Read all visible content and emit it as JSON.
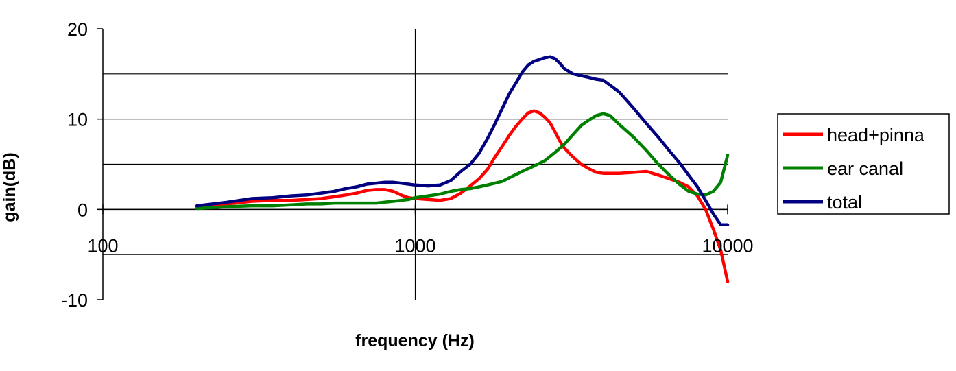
{
  "chart_data": {
    "type": "line",
    "xlabel": "frequency (Hz)",
    "ylabel": "gain(dB)",
    "x_scale": "log",
    "xlim": [
      100,
      10000
    ],
    "ylim": [
      -10,
      20
    ],
    "x_ticks": [
      {
        "value": 100,
        "label": "100"
      },
      {
        "value": 1000,
        "label": "1000"
      },
      {
        "value": 10000,
        "label": "10000"
      }
    ],
    "y_ticks": [
      {
        "value": 20,
        "label": "20"
      },
      {
        "value": 10,
        "label": "10"
      },
      {
        "value": 0,
        "label": "0"
      },
      {
        "value": -10,
        "label": "-10"
      }
    ],
    "y_gridlines": [
      15,
      10,
      5,
      0,
      -5
    ],
    "x_gridlines": [
      1000
    ],
    "legend": "right",
    "series": [
      {
        "name": "head+pinna",
        "color": "#ff0000",
        "x": [
          200,
          250,
          300,
          350,
          400,
          450,
          500,
          550,
          600,
          650,
          700,
          750,
          800,
          850,
          900,
          950,
          1000,
          1100,
          1200,
          1300,
          1400,
          1500,
          1600,
          1700,
          1800,
          1900,
          2000,
          2100,
          2200,
          2300,
          2400,
          2500,
          2600,
          2700,
          2800,
          2900,
          3000,
          3200,
          3400,
          3600,
          3800,
          4000,
          4500,
          5000,
          5500,
          6000,
          6500,
          7000,
          7500,
          8000,
          8500,
          9000,
          9500,
          10000
        ],
        "y": [
          0.3,
          0.6,
          0.9,
          1.0,
          1.0,
          1.1,
          1.2,
          1.4,
          1.6,
          1.8,
          2.1,
          2.2,
          2.2,
          2.0,
          1.6,
          1.3,
          1.2,
          1.1,
          1.0,
          1.2,
          1.8,
          2.6,
          3.4,
          4.4,
          5.8,
          7.0,
          8.2,
          9.2,
          10.0,
          10.7,
          10.9,
          10.7,
          10.2,
          9.6,
          8.6,
          7.6,
          6.8,
          5.8,
          5.0,
          4.5,
          4.1,
          4.0,
          4.0,
          4.1,
          4.2,
          3.8,
          3.4,
          3.0,
          2.5,
          1.5,
          0.0,
          -2.2,
          -4.5,
          -8.0
        ]
      },
      {
        "name": "ear canal",
        "color": "#008000",
        "x": [
          200,
          250,
          300,
          350,
          400,
          450,
          500,
          550,
          600,
          650,
          700,
          750,
          800,
          850,
          900,
          950,
          1000,
          1100,
          1200,
          1300,
          1400,
          1500,
          1600,
          1700,
          1800,
          1900,
          2000,
          2200,
          2400,
          2600,
          2800,
          3000,
          3200,
          3400,
          3600,
          3800,
          4000,
          4200,
          4500,
          5000,
          5500,
          6000,
          6500,
          7000,
          7500,
          8000,
          8500,
          9000,
          9500,
          10000
        ],
        "y": [
          0.1,
          0.3,
          0.4,
          0.4,
          0.5,
          0.6,
          0.6,
          0.7,
          0.7,
          0.7,
          0.7,
          0.7,
          0.8,
          0.9,
          1.0,
          1.1,
          1.3,
          1.5,
          1.7,
          2.0,
          2.2,
          2.3,
          2.5,
          2.7,
          2.9,
          3.1,
          3.5,
          4.2,
          4.8,
          5.4,
          6.3,
          7.2,
          8.3,
          9.3,
          9.9,
          10.4,
          10.6,
          10.4,
          9.4,
          8.0,
          6.5,
          5.0,
          3.8,
          2.8,
          2.0,
          1.7,
          1.6,
          2.0,
          3.0,
          6.0
        ]
      },
      {
        "name": "total",
        "color": "#000080",
        "x": [
          200,
          250,
          300,
          350,
          400,
          450,
          500,
          550,
          600,
          650,
          700,
          750,
          800,
          850,
          900,
          950,
          1000,
          1100,
          1200,
          1300,
          1400,
          1500,
          1600,
          1700,
          1800,
          1900,
          2000,
          2100,
          2200,
          2300,
          2400,
          2500,
          2600,
          2700,
          2800,
          2900,
          3000,
          3200,
          3400,
          3600,
          3800,
          4000,
          4500,
          5000,
          5500,
          6000,
          6500,
          7000,
          7500,
          8000,
          8500,
          9000,
          9500,
          10000
        ],
        "y": [
          0.4,
          0.8,
          1.2,
          1.3,
          1.5,
          1.6,
          1.8,
          2.0,
          2.3,
          2.5,
          2.8,
          2.9,
          3.0,
          3.0,
          2.9,
          2.8,
          2.7,
          2.6,
          2.7,
          3.2,
          4.2,
          5.0,
          6.2,
          7.8,
          9.5,
          11.2,
          12.8,
          14.0,
          15.2,
          16.0,
          16.4,
          16.6,
          16.8,
          16.9,
          16.7,
          16.2,
          15.6,
          15.0,
          14.8,
          14.6,
          14.4,
          14.3,
          13.0,
          11.2,
          9.5,
          8.0,
          6.5,
          5.2,
          3.8,
          2.5,
          1.0,
          -0.5,
          -1.7,
          -1.7
        ]
      }
    ]
  }
}
